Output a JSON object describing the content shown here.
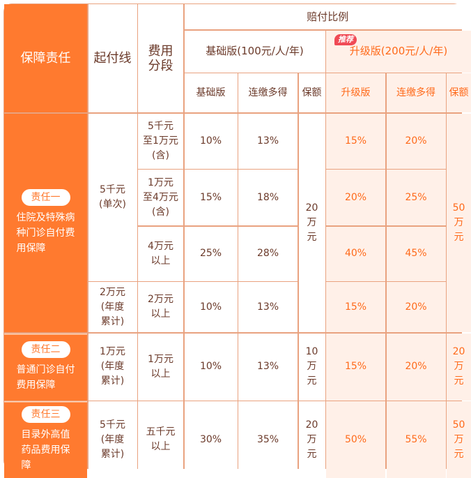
{
  "header": {
    "duty": "保障责任",
    "threshold": "起付线",
    "segment": "费用\n分段",
    "ratio": "赔付比例",
    "basic_plan": "基础版(100元/人/年)",
    "upgrade_plan": "升级版(200元/人/年)",
    "recommend_badge": "推荐",
    "sub": [
      "基础版",
      "连缴多得",
      "保额",
      "升级版",
      "连缴多得",
      "保额"
    ]
  },
  "duties": [
    {
      "tag": "责任一",
      "desc": "住院及特殊病\n种门诊自付费\n用保障",
      "thresholds": [
        "5千元\n(单次)",
        "2万元\n(年度\n累计)"
      ],
      "rows": [
        {
          "segment": "5千元\n至1万元\n(含)",
          "basic": "10%",
          "basic_bonus": "13%",
          "upgrade": "15%",
          "upgrade_bonus": "20%"
        },
        {
          "segment": "1万元\n至4万元\n(含)",
          "basic": "15%",
          "basic_bonus": "18%",
          "upgrade": "20%",
          "upgrade_bonus": "25%"
        },
        {
          "segment": "4万元\n以上",
          "basic": "25%",
          "basic_bonus": "28%",
          "upgrade": "40%",
          "upgrade_bonus": "45%"
        },
        {
          "segment": "2万元\n以上",
          "basic": "10%",
          "basic_bonus": "13%",
          "upgrade": "15%",
          "upgrade_bonus": "20%"
        }
      ],
      "basic_cover": "20\n万\n元",
      "upgrade_cover": "50\n万\n元"
    },
    {
      "tag": "责任二",
      "desc": "普通门诊自付\n费用保障",
      "thresholds": [
        "1万元\n(年度\n累计)"
      ],
      "rows": [
        {
          "segment": "1万元\n以上",
          "basic": "10%",
          "basic_bonus": "13%",
          "upgrade": "15%",
          "upgrade_bonus": "20%"
        }
      ],
      "basic_cover": "10\n万\n元",
      "upgrade_cover": "20\n万\n元"
    },
    {
      "tag": "责任三",
      "desc": "目录外高值\n药品费用保\n障",
      "thresholds": [
        "5千元\n(年度\n累计)"
      ],
      "rows": [
        {
          "segment": "五千元\n以上",
          "basic": "30%",
          "basic_bonus": "35%",
          "upgrade": "50%",
          "upgrade_bonus": "55%"
        }
      ],
      "basic_cover": "20\n万\n元",
      "upgrade_cover": "50\n万\n元"
    }
  ],
  "colors": {
    "primary": "#ff7a2f",
    "upgrade_bg": "#fff0e8",
    "upgrade_text": "#ff6a1a",
    "text": "#6b3a2a",
    "border": "#e9a27f",
    "badge": "#f04a55"
  }
}
